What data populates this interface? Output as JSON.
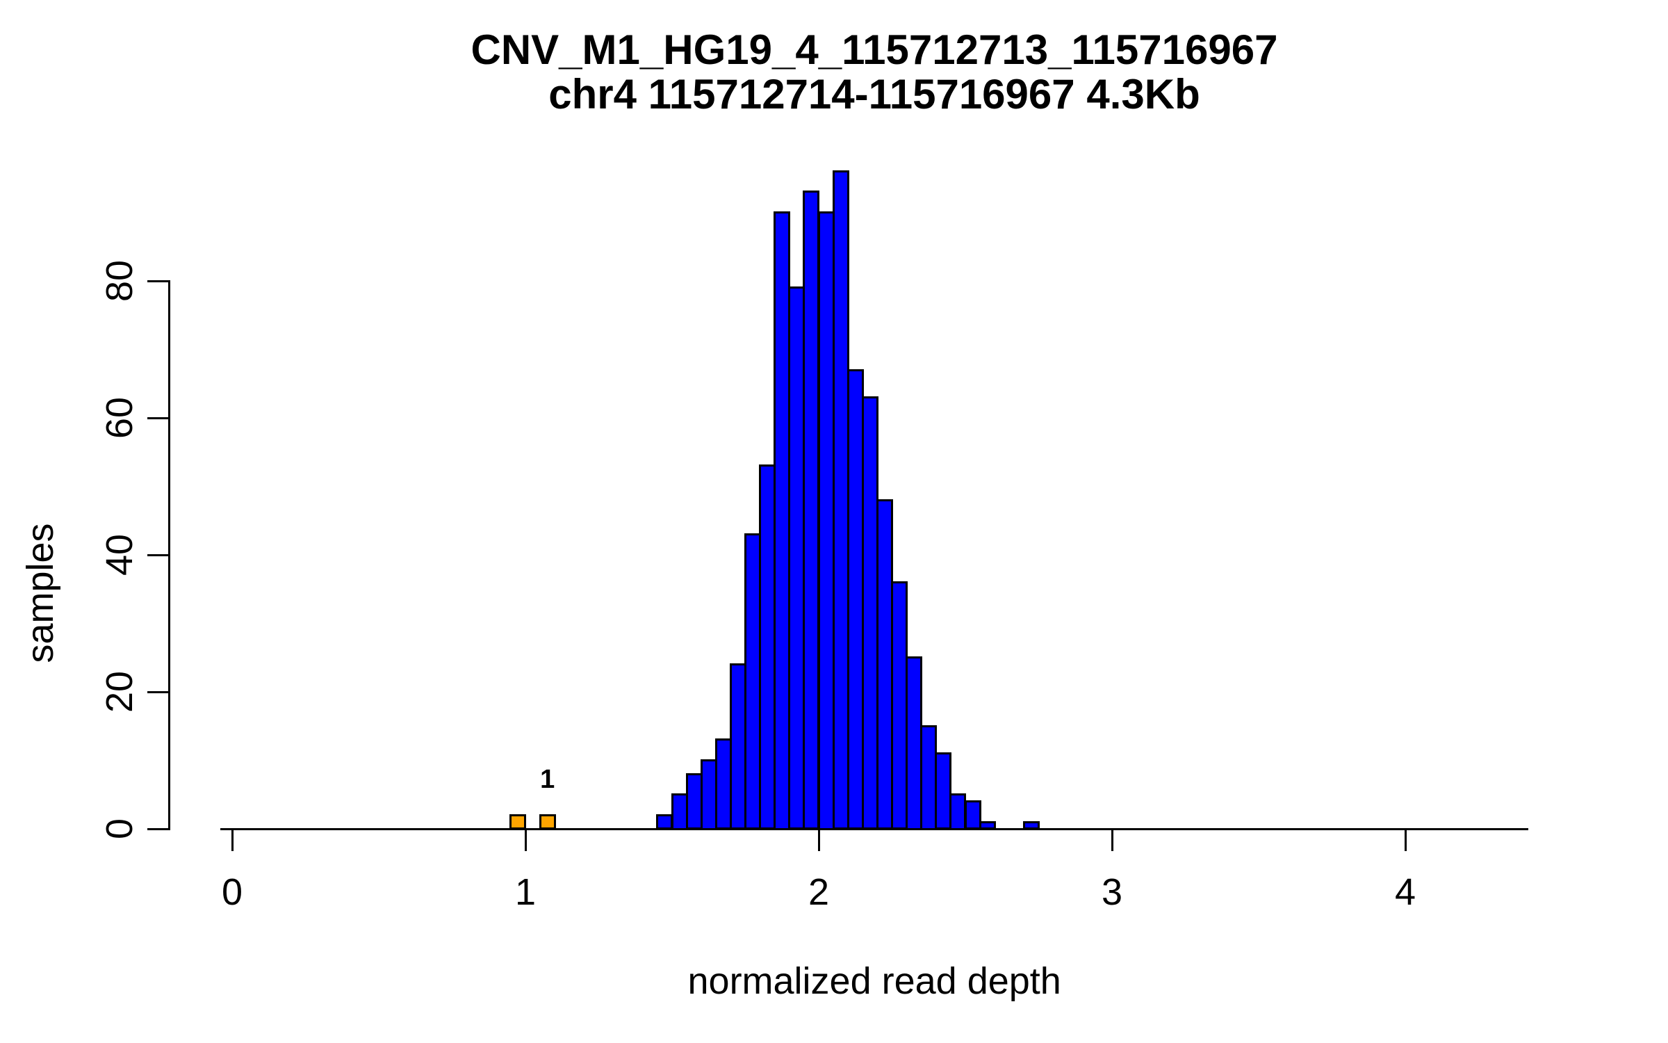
{
  "title": {
    "line1": "CNV_M1_HG19_4_115712713_115716967",
    "line2": "chr4 115712714-115716967 4.3Kb"
  },
  "x_axis": {
    "label": "normalized read depth",
    "ticks": [
      0,
      1,
      2,
      3,
      4
    ]
  },
  "y_axis": {
    "label": "samples",
    "ticks": [
      0,
      20,
      40,
      60,
      80
    ]
  },
  "annotation": {
    "text": "1",
    "x_value": 1.075
  },
  "colors": {
    "bar_blue": "#0000FF",
    "bar_orange": "#FFA500",
    "axis": "#000000",
    "background": "#FFFFFF"
  },
  "chart_data": {
    "type": "bar",
    "subtype": "histogram",
    "title": "CNV_M1_HG19_4_115712713_115716967",
    "subtitle": "chr4 115712714-115716967 4.3Kb",
    "xlabel": "normalized read depth",
    "ylabel": "samples",
    "xlim": [
      -0.04,
      4.42
    ],
    "ylim": [
      0,
      96
    ],
    "x_ticks": [
      0,
      1,
      2,
      3,
      4
    ],
    "y_ticks": [
      0,
      20,
      40,
      60,
      80
    ],
    "grid": false,
    "legend": "none",
    "bin_width": 0.05,
    "bins": [
      {
        "start": 0.95,
        "count": 2,
        "color": "orange"
      },
      {
        "start": 1.05,
        "count": 2,
        "color": "orange"
      },
      {
        "start": 1.45,
        "count": 2,
        "color": "blue"
      },
      {
        "start": 1.5,
        "count": 5,
        "color": "blue"
      },
      {
        "start": 1.55,
        "count": 8,
        "color": "blue"
      },
      {
        "start": 1.6,
        "count": 10,
        "color": "blue"
      },
      {
        "start": 1.65,
        "count": 13,
        "color": "blue"
      },
      {
        "start": 1.7,
        "count": 24,
        "color": "blue"
      },
      {
        "start": 1.75,
        "count": 43,
        "color": "blue"
      },
      {
        "start": 1.8,
        "count": 53,
        "color": "blue"
      },
      {
        "start": 1.85,
        "count": 90,
        "color": "blue"
      },
      {
        "start": 1.9,
        "count": 79,
        "color": "blue"
      },
      {
        "start": 1.95,
        "count": 93,
        "color": "blue"
      },
      {
        "start": 2.0,
        "count": 90,
        "color": "blue"
      },
      {
        "start": 2.05,
        "count": 96,
        "color": "blue"
      },
      {
        "start": 2.1,
        "count": 67,
        "color": "blue"
      },
      {
        "start": 2.15,
        "count": 63,
        "color": "blue"
      },
      {
        "start": 2.2,
        "count": 48,
        "color": "blue"
      },
      {
        "start": 2.25,
        "count": 36,
        "color": "blue"
      },
      {
        "start": 2.3,
        "count": 25,
        "color": "blue"
      },
      {
        "start": 2.35,
        "count": 15,
        "color": "blue"
      },
      {
        "start": 2.4,
        "count": 11,
        "color": "blue"
      },
      {
        "start": 2.45,
        "count": 5,
        "color": "blue"
      },
      {
        "start": 2.5,
        "count": 4,
        "color": "blue"
      },
      {
        "start": 2.55,
        "count": 1,
        "color": "blue"
      },
      {
        "start": 2.7,
        "count": 1,
        "color": "blue"
      }
    ],
    "annotations": [
      {
        "text": "1",
        "x": 1.075,
        "above_bar_start": 1.05
      }
    ]
  }
}
